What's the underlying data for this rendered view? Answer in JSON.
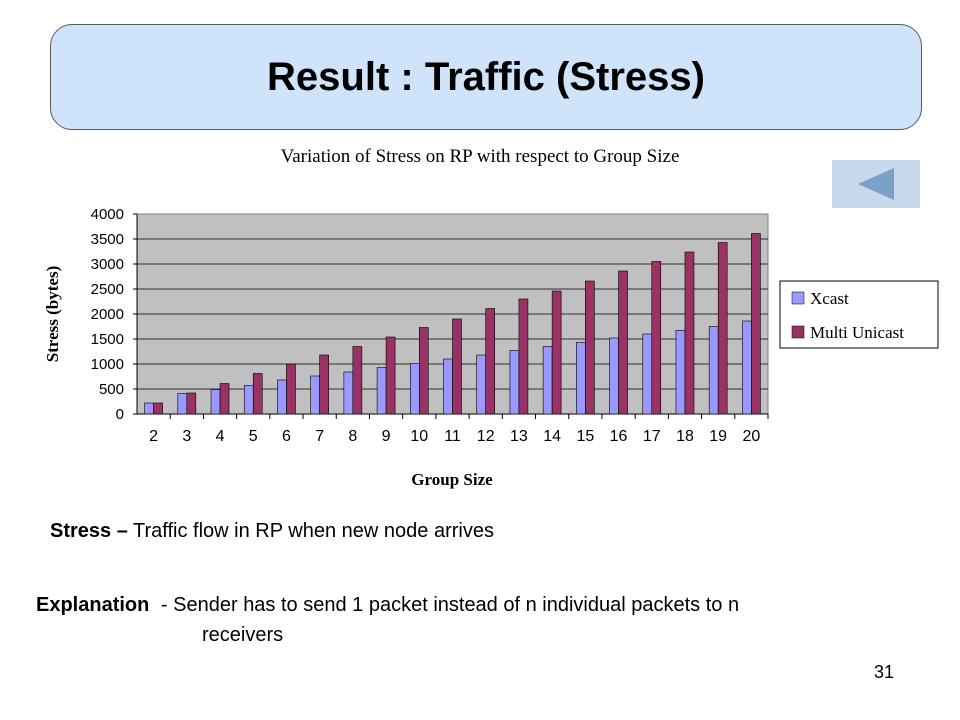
{
  "slide": {
    "title": "Result : Traffic (Stress)",
    "page_number": "31",
    "definition_term": "Stress –",
    "definition_text": "Traffic flow in RP when new node arrives",
    "explanation_term": "Explanation",
    "explanation_line1": "- Sender has to send 1 packet instead of n individual packets to n",
    "explanation_line2": "receivers",
    "back_icon": "left-triangle",
    "back_button_color": "#c5d8ec",
    "back_icon_color": "#7da0c8"
  },
  "chart_data": {
    "type": "bar",
    "title": "Variation of Stress on RP with respect to Group Size",
    "xlabel": "Group Size",
    "ylabel": "Stress (bytes)",
    "ylim": [
      0,
      4000
    ],
    "yticks": [
      "0",
      "500",
      "1000",
      "1500",
      "2000",
      "2500",
      "3000",
      "3500",
      "4000"
    ],
    "ytick_values": [
      0,
      500,
      1000,
      1500,
      2000,
      2500,
      3000,
      3500,
      4000
    ],
    "categories": [
      "2",
      "3",
      "4",
      "5",
      "6",
      "7",
      "8",
      "9",
      "10",
      "11",
      "12",
      "13",
      "14",
      "15",
      "16",
      "17",
      "18",
      "19",
      "20"
    ],
    "series": [
      {
        "name": "Xcast",
        "color": "#9999ff",
        "values": [
          220,
          410,
          490,
          570,
          680,
          760,
          840,
          930,
          1010,
          1100,
          1180,
          1270,
          1350,
          1430,
          1520,
          1600,
          1670,
          1750,
          1860
        ]
      },
      {
        "name": "Multi Unicast",
        "color": "#993366",
        "values": [
          220,
          420,
          610,
          810,
          1000,
          1180,
          1350,
          1540,
          1730,
          1900,
          2110,
          2300,
          2460,
          2660,
          2860,
          3050,
          3240,
          3430,
          3610
        ]
      }
    ],
    "grid": true,
    "plot_background": "#c0c0c0",
    "legend_position": "right"
  }
}
